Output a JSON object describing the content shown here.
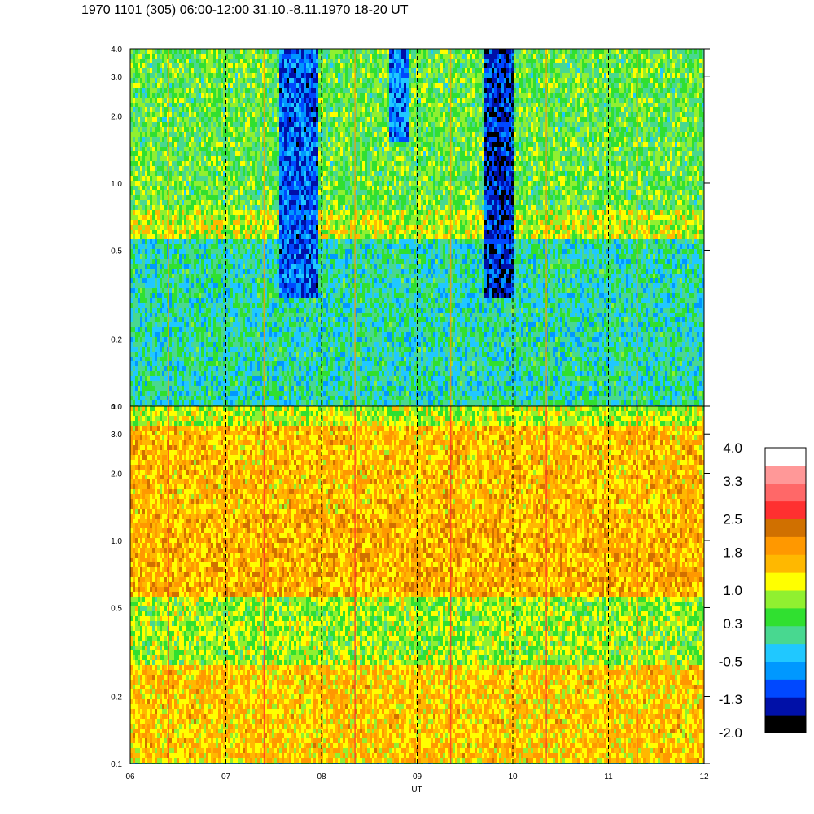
{
  "title": "1970 1101 (305) 06:00-12:00 31.10.-8.11.1970  18-20 UT",
  "chart_data": [
    {
      "type": "heatmap",
      "panel": "upper",
      "x_range": [
        6,
        12
      ],
      "xlabel": "UT",
      "y_scale": "log",
      "y_range": [
        0.1,
        4.0
      ],
      "y_tick_values": [
        0.1,
        0.2,
        0.5,
        1.0,
        2.0,
        3.0,
        4.0
      ],
      "y_tick_labels": [
        "0.1",
        "0.2",
        "0.5",
        "1.0",
        "2.0",
        "3.0",
        "4.0"
      ],
      "dominant_level_bands": [
        {
          "y_from": 0.1,
          "y_to": 0.55,
          "level": 0.0
        },
        {
          "y_from": 0.55,
          "y_to": 0.75,
          "level": 1.0
        },
        {
          "y_from": 0.75,
          "y_to": 4.0,
          "level": 0.5
        }
      ],
      "low_level_patches": [
        {
          "x_from": 7.55,
          "x_to": 7.95,
          "y_from": 0.3,
          "y_to": 4.0,
          "level": -1.0
        },
        {
          "x_from": 9.7,
          "x_to": 10.0,
          "y_from": 0.3,
          "y_to": 4.0,
          "level": -1.3
        },
        {
          "x_from": 8.7,
          "x_to": 8.9,
          "y_from": 1.5,
          "y_to": 4.0,
          "level": -0.8
        }
      ],
      "spike_times": [
        6.4,
        7.4,
        8.35,
        9.35,
        10.35,
        11.3
      ]
    },
    {
      "type": "heatmap",
      "panel": "lower",
      "x_range": [
        6,
        12
      ],
      "xlabel": "UT",
      "y_scale": "log",
      "y_range": [
        0.1,
        4.0
      ],
      "y_tick_values": [
        0.1,
        0.2,
        0.5,
        1.0,
        2.0,
        3.0,
        4.0
      ],
      "y_tick_labels": [
        "0.1",
        "0.2",
        "0.5",
        "1.0",
        "2.0",
        "3.0",
        "4.0"
      ],
      "dominant_level_bands": [
        {
          "y_from": 0.1,
          "y_to": 0.27,
          "level": 1.5
        },
        {
          "y_from": 0.27,
          "y_to": 0.55,
          "level": 0.8
        },
        {
          "y_from": 0.55,
          "y_to": 1.3,
          "level": 1.7
        },
        {
          "y_from": 1.3,
          "y_to": 3.3,
          "level": 1.6
        },
        {
          "y_from": 3.3,
          "y_to": 4.0,
          "level": 0.9
        }
      ],
      "spike_times": [
        6.4,
        7.4,
        8.35,
        9.35,
        10.35,
        11.3
      ]
    }
  ],
  "x_tick_values": [
    6,
    7,
    8,
    9,
    10,
    11,
    12
  ],
  "x_tick_labels": [
    "06",
    "07",
    "08",
    "09",
    "10",
    "11",
    "12"
  ],
  "colorbar": {
    "range": [
      -2.0,
      4.0
    ],
    "tick_labels": [
      "4.0",
      "3.3",
      "2.5",
      "1.8",
      "1.0",
      "0.3",
      "-0.5",
      "-1.3",
      "-2.0"
    ],
    "tick_values": [
      4.0,
      3.3,
      2.5,
      1.8,
      1.0,
      0.3,
      -0.5,
      -1.3,
      -2.0
    ],
    "colors_bottom_to_top": [
      "#000000",
      "#0010a8",
      "#0048ff",
      "#0098ff",
      "#20c8ff",
      "#48d890",
      "#30e030",
      "#90f030",
      "#ffff00",
      "#ffb800",
      "#ff9800",
      "#d07000",
      "#ff3030",
      "#ff6868",
      "#ff9898",
      "#ffffff"
    ]
  }
}
